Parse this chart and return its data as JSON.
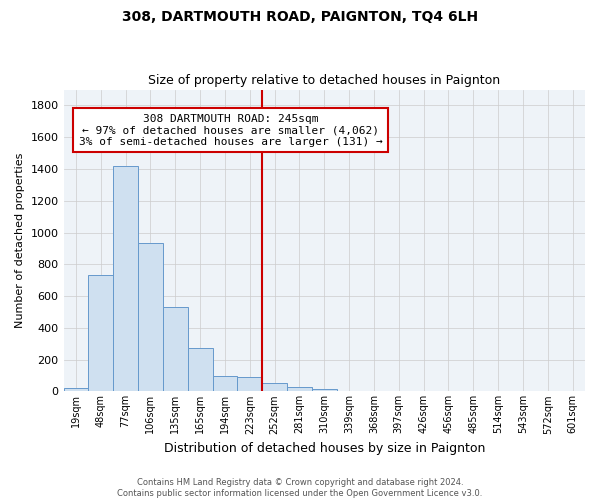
{
  "title": "308, DARTMOUTH ROAD, PAIGNTON, TQ4 6LH",
  "subtitle": "Size of property relative to detached houses in Paignton",
  "xlabel": "Distribution of detached houses by size in Paignton",
  "ylabel": "Number of detached properties",
  "footnote1": "Contains HM Land Registry data © Crown copyright and database right 2024.",
  "footnote2": "Contains public sector information licensed under the Open Government Licence v3.0.",
  "bin_labels": [
    "19sqm",
    "48sqm",
    "77sqm",
    "106sqm",
    "135sqm",
    "165sqm",
    "194sqm",
    "223sqm",
    "252sqm",
    "281sqm",
    "310sqm",
    "339sqm",
    "368sqm",
    "397sqm",
    "426sqm",
    "456sqm",
    "485sqm",
    "514sqm",
    "543sqm",
    "572sqm",
    "601sqm"
  ],
  "bin_values": [
    20,
    730,
    1420,
    935,
    530,
    270,
    100,
    90,
    50,
    30,
    15,
    5,
    2,
    1,
    0,
    0,
    0,
    0,
    0,
    0,
    0
  ],
  "bar_color": "#cfe0f0",
  "bar_edge_color": "#6699cc",
  "vline_color": "#cc0000",
  "annotation_line1": "308 DARTMOUTH ROAD: 245sqm",
  "annotation_line2": "← 97% of detached houses are smaller (4,062)",
  "annotation_line3": "3% of semi-detached houses are larger (131) →",
  "annotation_box_color": "#ffffff",
  "annotation_box_edge": "#cc0000",
  "ylim": [
    0,
    1900
  ],
  "yticks": [
    0,
    200,
    400,
    600,
    800,
    1000,
    1200,
    1400,
    1600,
    1800
  ],
  "grid_color": "#cccccc",
  "background_color": "#ffffff",
  "plot_bg_color": "#eef3f8"
}
